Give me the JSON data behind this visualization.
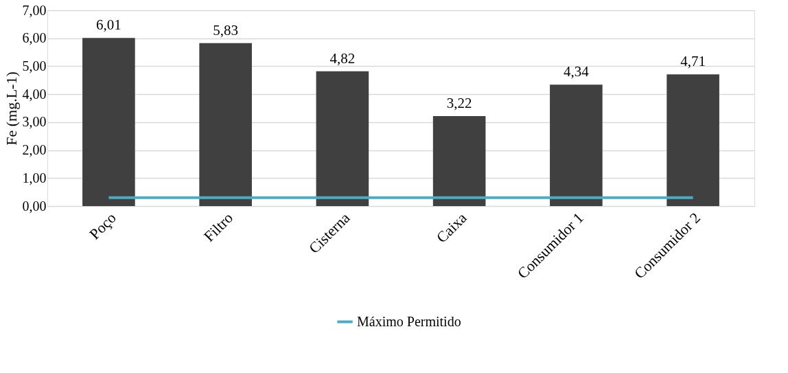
{
  "chart_data": {
    "type": "bar",
    "ylabel": "Fe (mg.L-1)",
    "categories": [
      "Poço",
      "Filtro",
      "Cisterna",
      "Caixa",
      "Consumidor 1",
      "Consumidor 2"
    ],
    "series": [
      {
        "color": "#404040",
        "values": [
          6.01,
          5.83,
          4.82,
          3.22,
          4.34,
          4.71
        ],
        "value_labels": [
          "6,01",
          "5,83",
          "4,82",
          "3,22",
          "4,34",
          "4,71"
        ]
      },
      {
        "type": "line",
        "name": "Máximo Permitido",
        "color": "#4bacc6",
        "values": [
          0.3,
          0.3,
          0.3,
          0.3,
          0.3,
          0.3
        ]
      }
    ],
    "ylim": [
      0,
      7
    ],
    "yticks": [
      {
        "value": 0,
        "label": "0,00"
      },
      {
        "value": 1,
        "label": "1,00"
      },
      {
        "value": 2,
        "label": "2,00"
      },
      {
        "value": 3,
        "label": "3,00"
      },
      {
        "value": 4,
        "label": "4,00"
      },
      {
        "value": 5,
        "label": "5,00"
      },
      {
        "value": 6,
        "label": "6,00"
      },
      {
        "value": 7,
        "label": "7,00"
      }
    ],
    "grid": "y",
    "legend": "bottom"
  }
}
